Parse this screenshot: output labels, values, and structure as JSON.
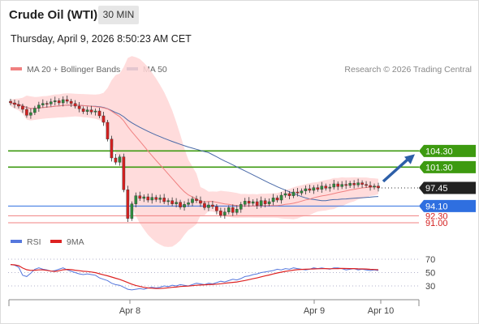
{
  "header": {
    "title": "Crude Oil (WTI)",
    "timeframe": "30 MIN",
    "timestamp": "Thursday, April 9, 2026 8:50:23 AM CET",
    "credit": "Research © 2026 Trading Central"
  },
  "legend": {
    "ma20": "MA 20 + Bollinger Bands",
    "ma50": "MA 50",
    "rsi": "RSI",
    "ma9": "9MA"
  },
  "colors": {
    "candle_up": "#2e8b3e",
    "candle_down": "#d42020",
    "bollinger_fill": "#ffd6d6",
    "ma20": "#f08080",
    "ma50": "#4a6aa8",
    "resistance": "#3d9a10",
    "support": "#f08080",
    "pivot": "#2f6fe0",
    "last_price_tag": "#222222",
    "arrow": "#2d5fa8",
    "rsi_line": "#5577dd",
    "ma9_line": "#dd2222"
  },
  "chart_data": [
    {
      "type": "candlestick",
      "title": "Crude Oil (WTI) 30 MIN",
      "x_tick_labels": [
        "Apr 8",
        "Apr 9",
        "Apr 10"
      ],
      "price_axis": {
        "min": 88,
        "max": 118
      },
      "last_price": 97.45,
      "levels": [
        {
          "role": "resistance",
          "value": 104.3,
          "label": "104.30"
        },
        {
          "role": "resistance",
          "value": 101.3,
          "label": "101.30"
        },
        {
          "role": "pivot",
          "value": 94.1,
          "label": "94.10"
        },
        {
          "role": "support",
          "value": 92.3,
          "label": "92.30"
        },
        {
          "role": "support",
          "value": 91.0,
          "label": "91.00"
        }
      ],
      "forecast": "up",
      "series": {
        "close": [
          113.2,
          112.9,
          112.6,
          112.0,
          110.9,
          111.4,
          112.2,
          112.8,
          113.1,
          113.0,
          113.4,
          113.6,
          113.2,
          113.8,
          113.5,
          113.1,
          112.6,
          112.1,
          111.6,
          111.9,
          111.5,
          111.7,
          110.8,
          109.6,
          106.5,
          103.0,
          102.2,
          103.2,
          97.1,
          91.8,
          94.5,
          96.0,
          95.5,
          95.8,
          95.2,
          95.7,
          95.3,
          95.6,
          94.9,
          95.1,
          94.5,
          94.8,
          93.9,
          94.4,
          94.7,
          95.4,
          95.1,
          94.6,
          93.8,
          94.3,
          94.0,
          93.2,
          92.4,
          93.0,
          93.8,
          92.9,
          93.5,
          94.4,
          95.0,
          94.6,
          94.9,
          94.2,
          95.1,
          94.5,
          94.9,
          95.6,
          95.2,
          96.1,
          96.4,
          96.0,
          96.7,
          96.5,
          96.9,
          97.3,
          97.0,
          97.5,
          97.2,
          97.8,
          97.4,
          97.6,
          98.2,
          97.7,
          98.1,
          97.9,
          98.3,
          98.0,
          98.4,
          98.1,
          97.9,
          97.6,
          97.8,
          97.45
        ],
        "rsi": [
          62.0,
          61.0,
          58.0,
          46.0,
          44.0,
          49.0,
          55.0,
          57.0,
          55.0,
          54.0,
          52.0,
          53.0,
          55.0,
          57.0,
          54.0,
          52.0,
          50.0,
          48.0,
          47.0,
          48.0,
          47.0,
          46.0,
          42.0,
          40.0,
          38.0,
          34.0,
          32.0,
          31.0,
          28.0,
          25.0,
          24.0,
          25.0,
          26.0,
          25.0,
          27.0,
          28.0,
          27.0,
          28.0,
          30.0,
          29.0,
          31.0,
          30.0,
          32.0,
          31.0,
          30.0,
          32.0,
          34.0,
          33.0,
          32.0,
          34.0,
          33.0,
          35.0,
          37.0,
          36.0,
          38.0,
          40.0,
          39.0,
          41.0,
          44.0,
          45.0,
          47.0,
          48.0,
          50.0,
          51.0,
          52.0,
          53.0,
          55.0,
          54.0,
          56.0,
          55.0,
          57.0,
          56.0,
          55.0,
          54.0,
          55.0,
          57.0,
          56.0,
          57.0,
          56.0,
          55.0,
          57.0,
          57.0,
          56.0,
          54.0,
          55.0,
          56.0,
          54.0,
          55.0,
          54.0,
          53.0,
          54.0,
          53.0
        ],
        "rsi_levels": [
          70,
          50,
          30
        ]
      }
    }
  ]
}
